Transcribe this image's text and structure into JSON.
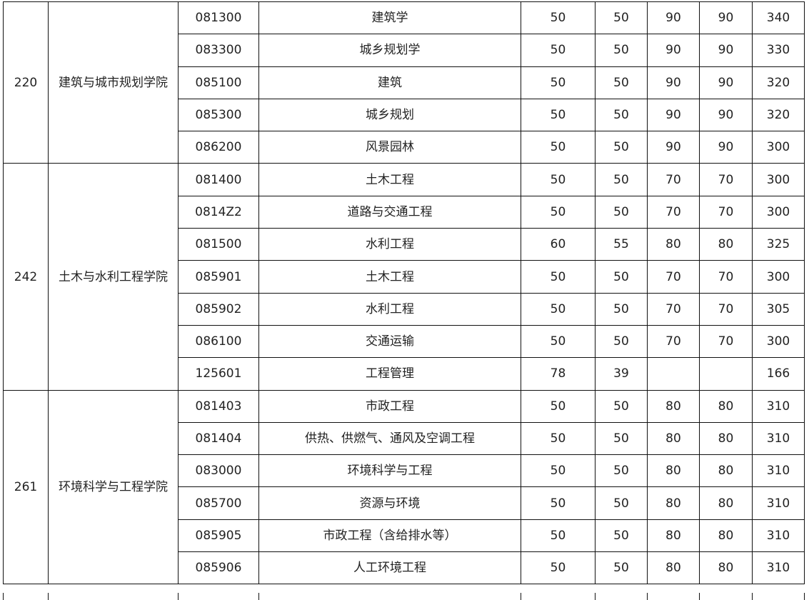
{
  "groups": [
    {
      "code": "220",
      "name": "建筑与城市规划学院",
      "rows": [
        [
          "081300",
          "建筑学",
          "50",
          "50",
          "90",
          "90",
          "340"
        ],
        [
          "083300",
          "城乡规划学",
          "50",
          "50",
          "90",
          "90",
          "330"
        ],
        [
          "085100",
          "建筑",
          "50",
          "50",
          "90",
          "90",
          "320"
        ],
        [
          "085300",
          "城乡规划",
          "50",
          "50",
          "90",
          "90",
          "320"
        ],
        [
          "086200",
          "风景园林",
          "50",
          "50",
          "90",
          "90",
          "300"
        ]
      ]
    },
    {
      "code": "242",
      "name": "土木与水利工程学院",
      "rows": [
        [
          "081400",
          "土木工程",
          "50",
          "50",
          "70",
          "70",
          "300"
        ],
        [
          "0814Z2",
          "道路与交通工程",
          "50",
          "50",
          "70",
          "70",
          "300"
        ],
        [
          "081500",
          "水利工程",
          "60",
          "55",
          "80",
          "80",
          "325"
        ],
        [
          "085901",
          "土木工程",
          "50",
          "50",
          "70",
          "70",
          "300"
        ],
        [
          "085902",
          "水利工程",
          "50",
          "50",
          "70",
          "70",
          "305"
        ],
        [
          "086100",
          "交通运输",
          "50",
          "50",
          "70",
          "70",
          "300"
        ],
        [
          "125601",
          "工程管理",
          "78",
          "39",
          "",
          "",
          "166"
        ]
      ]
    },
    {
      "code": "261",
      "name": "环境科学与工程学院",
      "rows": [
        [
          "081403",
          "市政工程",
          "50",
          "50",
          "80",
          "80",
          "310"
        ],
        [
          "081404",
          "供热、供燃气、通风及空调工程",
          "50",
          "50",
          "80",
          "80",
          "310"
        ],
        [
          "083000",
          "环境科学与工程",
          "50",
          "50",
          "80",
          "80",
          "310"
        ],
        [
          "085700",
          "资源与环境",
          "50",
          "50",
          "80",
          "80",
          "310"
        ],
        [
          "085905",
          "市政工程（含给排水等）",
          "50",
          "50",
          "80",
          "80",
          "310"
        ],
        [
          "085906",
          "人工环境工程",
          "50",
          "50",
          "80",
          "80",
          "310"
        ]
      ]
    }
  ]
}
